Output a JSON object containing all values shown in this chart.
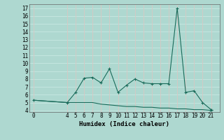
{
  "xlabel": "Humidex (Indice chaleur)",
  "background_color": "#aed8d0",
  "grid_h_color": "#c8e8e2",
  "grid_v_color": "#d8c8c4",
  "line_color": "#1a6b5a",
  "x_upper": [
    0,
    4,
    5,
    6,
    7,
    8,
    9,
    10,
    11,
    12,
    13,
    14,
    15,
    16,
    17,
    18,
    19,
    20,
    21
  ],
  "y_upper": [
    5.3,
    5.0,
    6.3,
    8.1,
    8.2,
    7.5,
    9.3,
    6.3,
    7.2,
    8.0,
    7.5,
    7.4,
    7.4,
    7.4,
    17.0,
    6.3,
    6.5,
    5.0,
    4.1
  ],
  "x_lower": [
    0,
    4,
    5,
    6,
    7,
    8,
    9,
    10,
    11,
    12,
    13,
    14,
    15,
    16,
    17,
    18,
    19,
    20,
    21
  ],
  "y_lower": [
    5.3,
    5.0,
    5.0,
    5.0,
    5.0,
    4.8,
    4.7,
    4.6,
    4.5,
    4.5,
    4.4,
    4.4,
    4.3,
    4.3,
    4.2,
    4.2,
    4.1,
    4.1,
    4.0
  ],
  "xlim": [
    -0.5,
    22.0
  ],
  "ylim": [
    3.8,
    17.5
  ],
  "yticks": [
    4,
    5,
    6,
    7,
    8,
    9,
    10,
    11,
    12,
    13,
    14,
    15,
    16,
    17
  ],
  "xticks": [
    0,
    4,
    5,
    6,
    7,
    8,
    9,
    10,
    11,
    12,
    13,
    14,
    15,
    16,
    17,
    18,
    19,
    20,
    21
  ],
  "xlabel_fontsize": 6.5,
  "tick_fontsize": 5.5
}
